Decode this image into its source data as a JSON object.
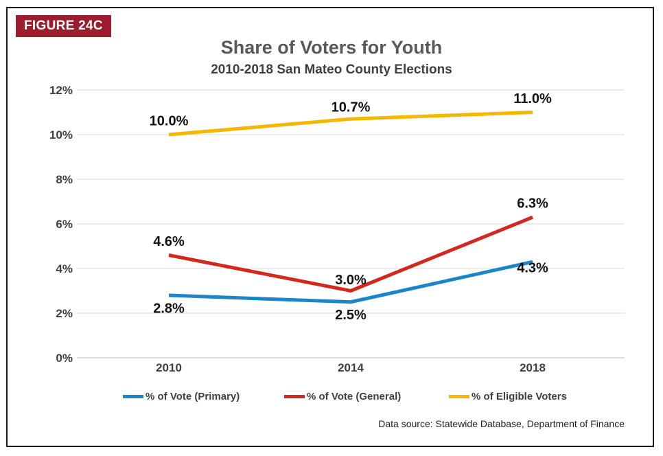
{
  "figure_label": "FIGURE 24C",
  "source": "Data source: Statewide Database, Department of Finance",
  "chart_data": {
    "type": "line",
    "title": "Share of Voters for Youth",
    "subtitle": "2010-2018 San Mateo County Elections",
    "categories": [
      "2010",
      "2014",
      "2018"
    ],
    "ylim": [
      0,
      12
    ],
    "yticks": [
      "0%",
      "2%",
      "4%",
      "6%",
      "8%",
      "10%",
      "12%"
    ],
    "grid": true,
    "legend_position": "bottom",
    "series": [
      {
        "name": "% of Vote (Primary)",
        "values": [
          2.8,
          2.5,
          4.3
        ],
        "labels": [
          "2.8%",
          "2.5%",
          "4.3%"
        ],
        "color": "#1a86c8"
      },
      {
        "name": "% of Vote (General)",
        "values": [
          4.6,
          3.0,
          6.3
        ],
        "labels": [
          "4.6%",
          "3.0%",
          "6.3%"
        ],
        "color": "#d2281e"
      },
      {
        "name": "% of Eligible Voters",
        "values": [
          10.0,
          10.7,
          11.0
        ],
        "labels": [
          "10.0%",
          "10.7%",
          "11.0%"
        ],
        "color": "#f5b800"
      }
    ]
  }
}
